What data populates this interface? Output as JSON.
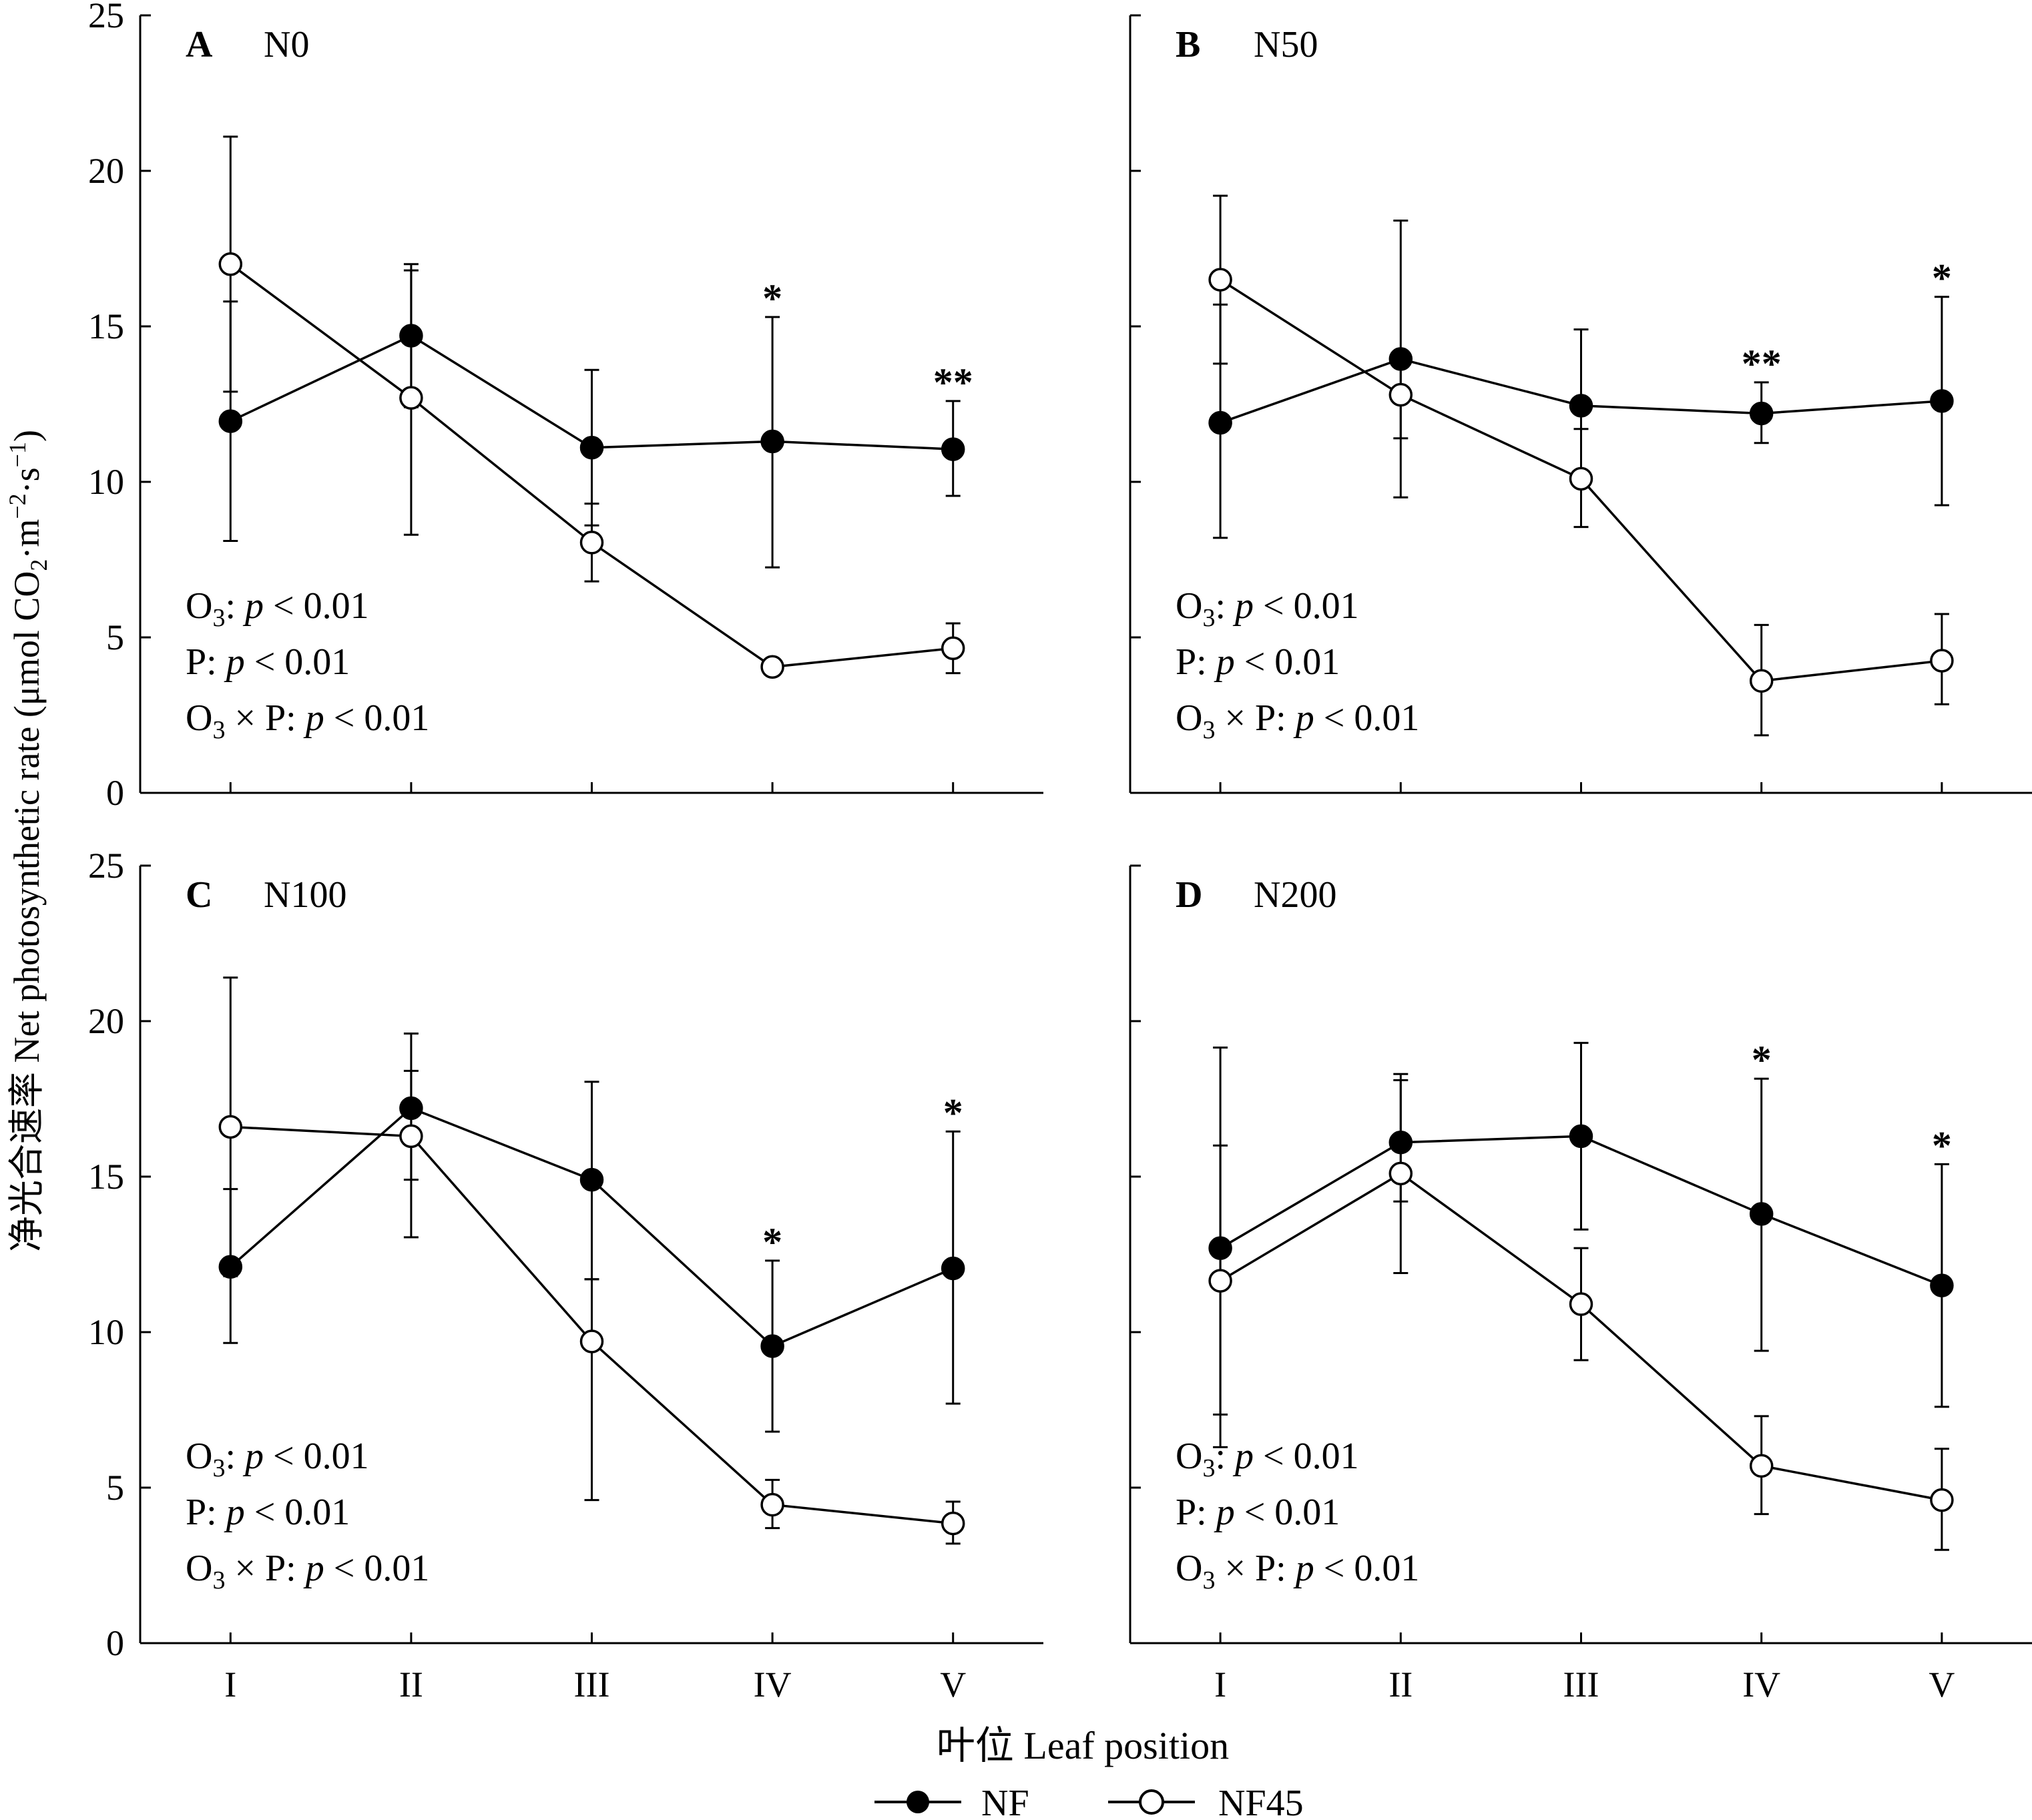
{
  "chart_data": [
    {
      "type": "line",
      "panel_label": "A",
      "title": "N0",
      "categories": [
        "I",
        "II",
        "III",
        "IV",
        "V"
      ],
      "ylim": [
        0,
        25
      ],
      "yticks": [
        0,
        5,
        10,
        15,
        20,
        25
      ],
      "series": [
        {
          "name": "NF",
          "marker": "filled",
          "values": [
            11.95,
            14.7,
            11.1,
            11.3,
            11.05
          ],
          "err_low": [
            8.1,
            12.4,
            8.6,
            7.25,
            9.55
          ],
          "err_high": [
            15.8,
            17.0,
            13.6,
            15.3,
            12.6
          ]
        },
        {
          "name": "NF45",
          "marker": "open",
          "values": [
            17.0,
            12.7,
            8.05,
            4.05,
            4.65
          ],
          "err_low": [
            12.9,
            8.3,
            6.8,
            4.05,
            3.85
          ],
          "err_high": [
            21.1,
            16.8,
            9.3,
            4.05,
            5.45
          ]
        }
      ],
      "significance": [
        "",
        "",
        "",
        "*",
        "**"
      ],
      "stats": [
        {
          "o3": "O",
          "sub": "3",
          "pre": ": ",
          "p": "p",
          "post": " < 0.01"
        },
        {
          "o3": "P",
          "sub": "",
          "pre": ": ",
          "p": "p",
          "post": " < 0.01"
        },
        {
          "o3": "O",
          "sub": "3",
          "pre": " × P: ",
          "p": "p",
          "post": " < 0.01"
        }
      ]
    },
    {
      "type": "line",
      "panel_label": "B",
      "title": "N50",
      "categories": [
        "I",
        "II",
        "III",
        "IV",
        "V"
      ],
      "ylim": [
        0,
        25
      ],
      "yticks": [
        0,
        5,
        10,
        15,
        20,
        25
      ],
      "series": [
        {
          "name": "NF",
          "marker": "filled",
          "values": [
            11.9,
            13.95,
            12.45,
            12.2,
            12.6
          ],
          "err_low": [
            8.2,
            9.5,
            10.0,
            11.25,
            9.25
          ],
          "err_high": [
            15.7,
            18.4,
            14.9,
            13.2,
            15.95
          ]
        },
        {
          "name": "NF45",
          "marker": "open",
          "values": [
            16.5,
            12.8,
            10.1,
            3.6,
            4.25
          ],
          "err_low": [
            13.8,
            11.4,
            8.55,
            1.85,
            2.85
          ],
          "err_high": [
            19.2,
            14.2,
            11.7,
            5.4,
            5.75
          ]
        }
      ],
      "significance": [
        "",
        "",
        "",
        "**",
        "*"
      ],
      "stats": [
        {
          "o3": "O",
          "sub": "3",
          "pre": ": ",
          "p": "p",
          "post": " < 0.01"
        },
        {
          "o3": "P",
          "sub": "",
          "pre": ": ",
          "p": "p",
          "post": " < 0.01"
        },
        {
          "o3": "O",
          "sub": "3",
          "pre": " × P: ",
          "p": "p",
          "post": " < 0.01"
        }
      ]
    },
    {
      "type": "line",
      "panel_label": "C",
      "title": "N100",
      "categories": [
        "I",
        "II",
        "III",
        "IV",
        "V"
      ],
      "ylim": [
        0,
        25
      ],
      "yticks": [
        0,
        5,
        10,
        15,
        20,
        25
      ],
      "series": [
        {
          "name": "NF",
          "marker": "filled",
          "values": [
            12.1,
            17.2,
            14.9,
            9.55,
            12.05
          ],
          "err_low": [
            9.65,
            14.9,
            11.7,
            6.8,
            7.7
          ],
          "err_high": [
            14.6,
            19.6,
            18.05,
            12.3,
            16.45
          ]
        },
        {
          "name": "NF45",
          "marker": "open",
          "values": [
            16.6,
            16.3,
            9.7,
            4.45,
            3.85
          ],
          "err_low": [
            11.8,
            13.05,
            4.6,
            3.7,
            3.2
          ],
          "err_high": [
            21.4,
            18.4,
            11.7,
            5.25,
            4.55
          ]
        }
      ],
      "significance": [
        "",
        "",
        "",
        "*",
        "*"
      ],
      "stats": [
        {
          "o3": "O",
          "sub": "3",
          "pre": ": ",
          "p": "p",
          "post": " < 0.01"
        },
        {
          "o3": "P",
          "sub": "",
          "pre": ": ",
          "p": "p",
          "post": " < 0.01"
        },
        {
          "o3": "O",
          "sub": "3",
          "pre": " × P: ",
          "p": "p",
          "post": " < 0.01"
        }
      ]
    },
    {
      "type": "line",
      "panel_label": "D",
      "title": "N200",
      "categories": [
        "I",
        "II",
        "III",
        "IV",
        "V"
      ],
      "ylim": [
        0,
        25
      ],
      "yticks": [
        0,
        5,
        10,
        15,
        20,
        25
      ],
      "series": [
        {
          "name": "NF",
          "marker": "filled",
          "values": [
            12.7,
            16.1,
            16.3,
            13.8,
            11.5
          ],
          "err_low": [
            6.3,
            14.2,
            13.3,
            9.4,
            7.6
          ],
          "err_high": [
            19.15,
            18.3,
            19.3,
            18.15,
            15.4
          ]
        },
        {
          "name": "NF45",
          "marker": "open",
          "values": [
            11.65,
            15.1,
            10.9,
            5.7,
            4.6
          ],
          "err_low": [
            7.35,
            11.9,
            9.1,
            4.15,
            3.0
          ],
          "err_high": [
            16.0,
            18.1,
            12.7,
            7.3,
            6.25
          ]
        }
      ],
      "significance": [
        "",
        "",
        "",
        "*",
        "*"
      ],
      "stats": [
        {
          "o3": "O",
          "sub": "3",
          "pre": ": ",
          "p": "p",
          "post": " < 0.01"
        },
        {
          "o3": "P",
          "sub": "",
          "pre": ": ",
          "p": "p",
          "post": " < 0.01"
        },
        {
          "o3": "O",
          "sub": "3",
          "pre": " × P: ",
          "p": "p",
          "post": " < 0.01"
        }
      ]
    }
  ],
  "axes": {
    "ylabel": {
      "cn": "净光合速率 Net photosynthetic rate (μmol CO",
      "sub": "2",
      "mid": "·m",
      "sup1": "−2",
      "mid2": "·s",
      "sup2": "−1",
      "end": ")"
    },
    "xlabel": "叶位 Leaf position"
  },
  "legend": [
    {
      "name": "NF",
      "marker": "filled"
    },
    {
      "name": "NF45",
      "marker": "open"
    }
  ],
  "colors": {
    "line": "#000000",
    "background": "#ffffff"
  }
}
